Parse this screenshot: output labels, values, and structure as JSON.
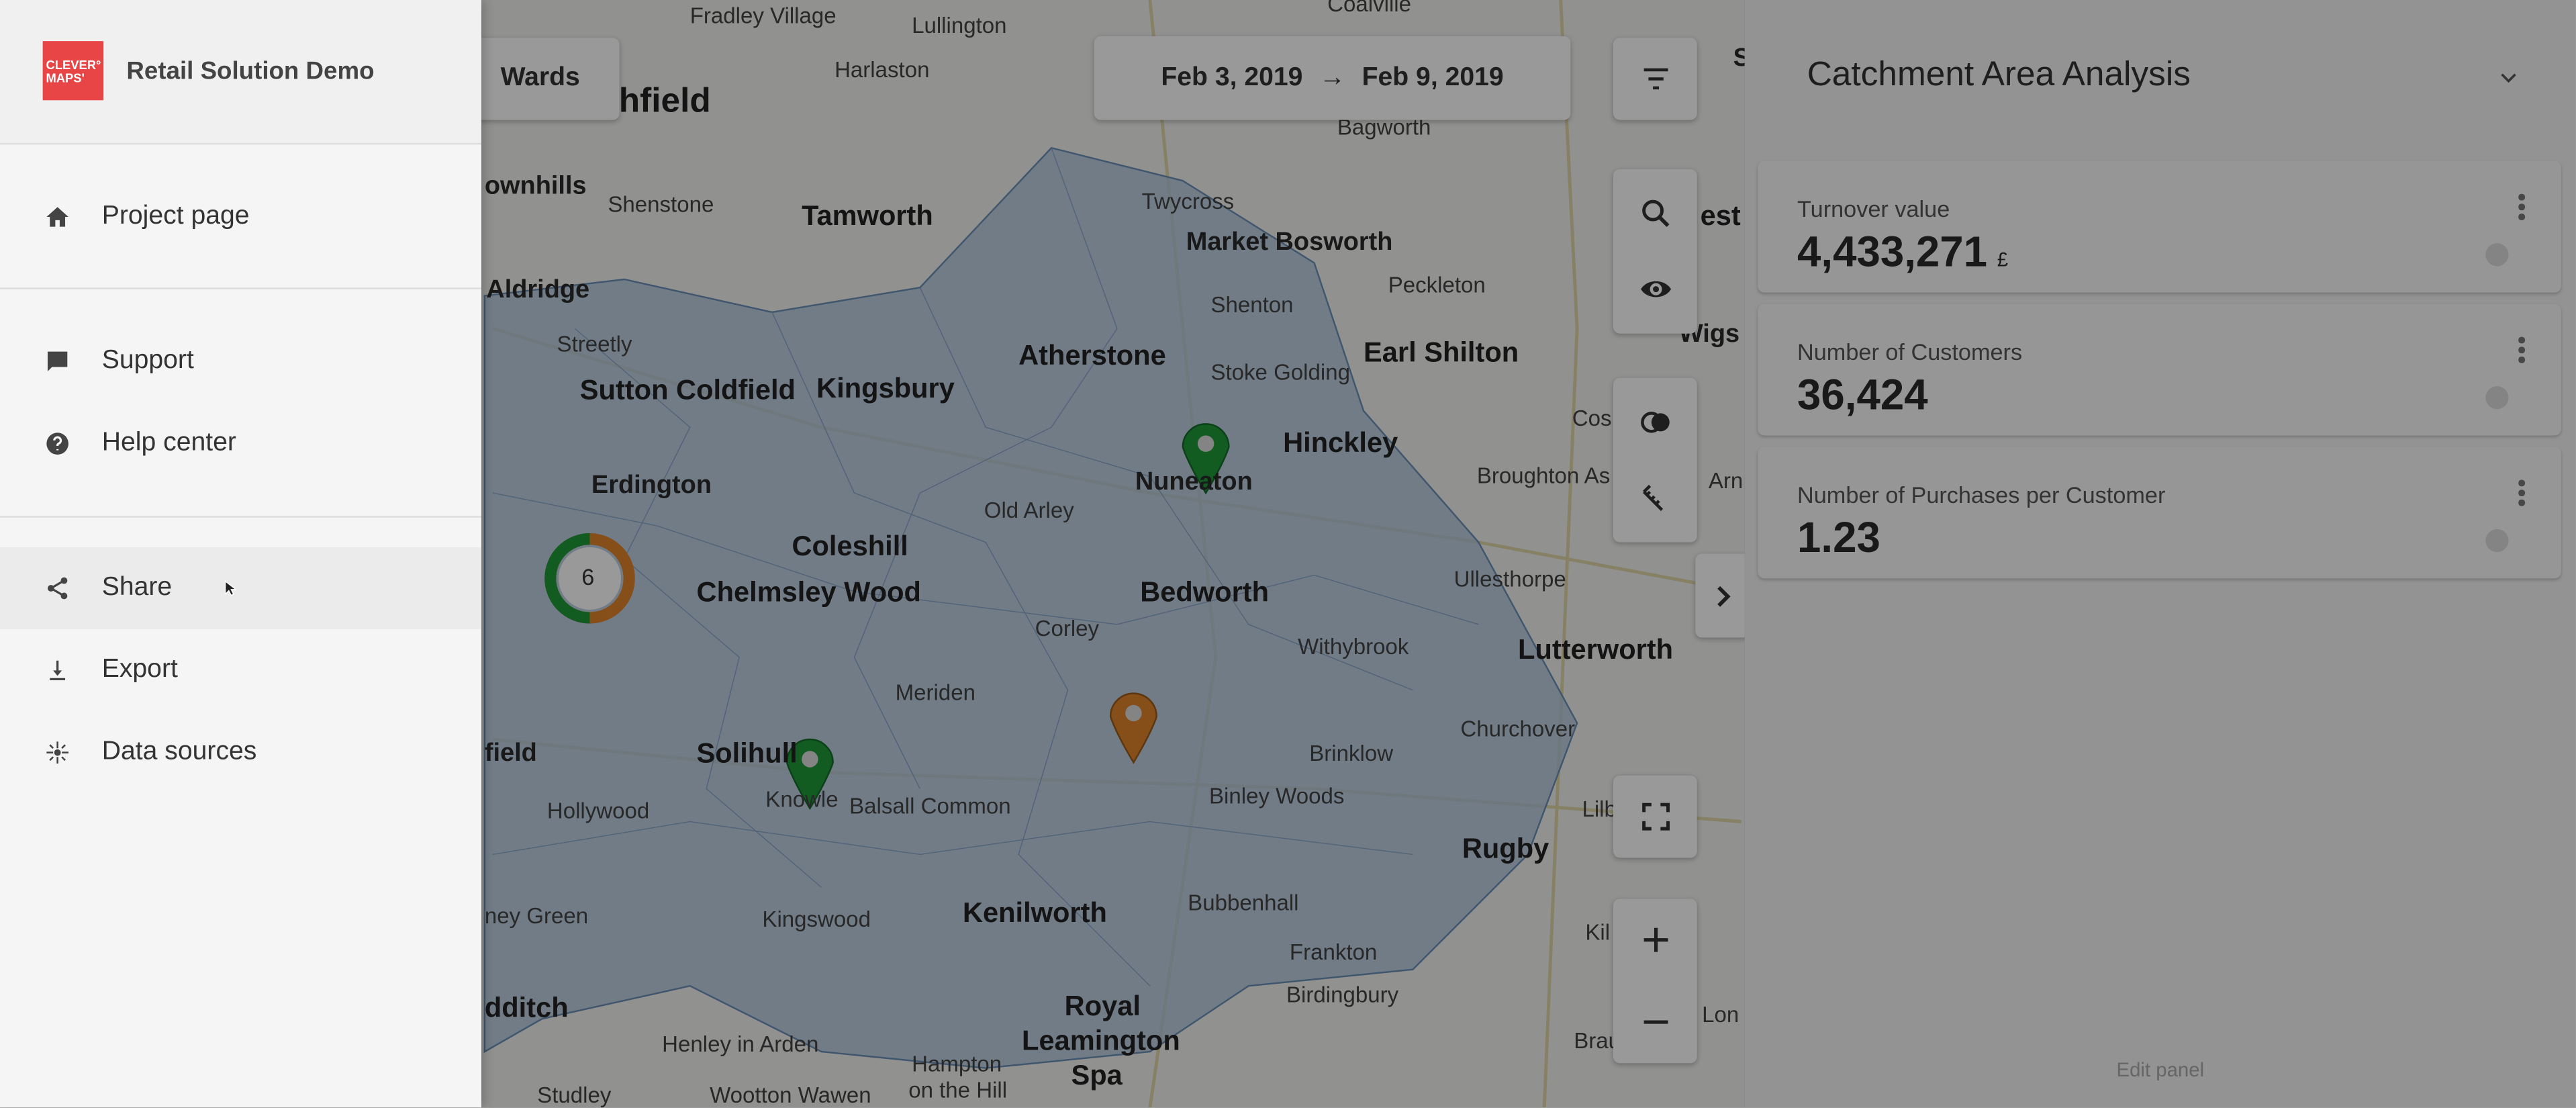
{
  "app": {
    "title": "Retail Solution Demo",
    "logo_text": "CLEVER° MAPS'",
    "brand_color": "#e84646"
  },
  "sidebar": {
    "items": [
      {
        "label": "Project page",
        "icon": "home-icon"
      },
      {
        "label": "Support",
        "icon": "chat-icon"
      },
      {
        "label": "Help center",
        "icon": "help-icon"
      },
      {
        "label": "Share",
        "icon": "share-icon",
        "hovered": true
      },
      {
        "label": "Export",
        "icon": "download-icon"
      },
      {
        "label": "Data sources",
        "icon": "data-sources-icon"
      }
    ]
  },
  "map": {
    "layer_button": "Wards",
    "date_range": {
      "start": "Feb 3, 2019",
      "arrow": "→",
      "end": "Feb 9, 2019"
    },
    "cluster_count": "6",
    "labels": [
      "Fradley Village",
      "Lullington",
      "Harlaston",
      "chfield",
      "ownhills",
      "Shenstone",
      "Tamworth",
      "Twycross",
      "Market Bosworth",
      "Bagworth",
      "Aldridge",
      "Streetly",
      "Shenton",
      "Peckleton",
      "Atherstone",
      "Stoke Golding",
      "Earl Shilton",
      "Sutton Coldfield",
      "Kingsbury",
      "Hinckley",
      "Erdington",
      "Nuneaton",
      "Broughton As",
      "Coleshill",
      "Old Arley",
      "Chelmsley Wood",
      "Bedworth",
      "Ullesthorpe",
      "Corley",
      "Withybrook",
      "Lutterworth",
      "Meriden",
      "Churchover",
      "field",
      "Solihull",
      "Brinklow",
      "Hollywood",
      "Knowle",
      "Balsall Common",
      "Binley Woods",
      "Rugby",
      "Kingswood",
      "Kenilworth",
      "Bubbenhall",
      "ney Green",
      "Frankton",
      "Birdingbury",
      "dditch",
      "Royal",
      "Leamington",
      "Spa",
      "Henley in Arden",
      "Hampton",
      "on the Hill",
      "Studley",
      "Wootton Wawen",
      "Braunst",
      "Cos",
      "Wigs",
      "Lilb",
      "Kil",
      "Lon",
      "Arn",
      "est",
      "S",
      "Coalville"
    ]
  },
  "panel": {
    "title": "Catchment Area Analysis",
    "cards": [
      {
        "title": "Turnover value",
        "value": "4,433,271",
        "unit": "£"
      },
      {
        "title": "Number of Customers",
        "value": "36,424",
        "unit": ""
      },
      {
        "title": "Number of Purchases per Customer",
        "value": "1.23",
        "unit": ""
      }
    ],
    "edit_label": "Edit panel"
  }
}
